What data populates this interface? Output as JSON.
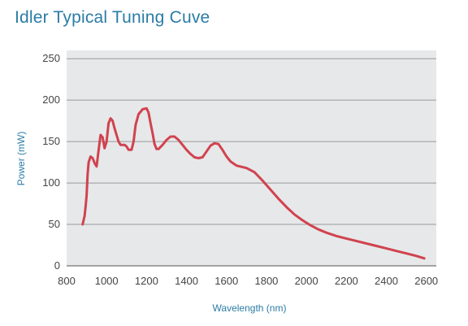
{
  "chart_data": {
    "type": "line",
    "title": "Idler Typical Tuning Cuve",
    "xlabel": "Wavelength (nm)",
    "ylabel": "Power (mW)",
    "xlim": [
      800,
      2650
    ],
    "ylim": [
      0,
      260
    ],
    "xticks": [
      800,
      1000,
      1200,
      1400,
      1600,
      1800,
      2000,
      2200,
      2400,
      2600
    ],
    "yticks": [
      0,
      50,
      100,
      150,
      200,
      250
    ],
    "grid": "horizontal",
    "series": [
      {
        "color": "#d0434f",
        "points": [
          [
            880,
            50
          ],
          [
            890,
            60
          ],
          [
            895,
            72
          ],
          [
            900,
            85
          ],
          [
            905,
            110
          ],
          [
            910,
            125
          ],
          [
            920,
            132
          ],
          [
            930,
            130
          ],
          [
            940,
            124
          ],
          [
            950,
            120
          ],
          [
            960,
            140
          ],
          [
            970,
            158
          ],
          [
            980,
            155
          ],
          [
            990,
            142
          ],
          [
            1000,
            150
          ],
          [
            1010,
            172
          ],
          [
            1020,
            178
          ],
          [
            1030,
            175
          ],
          [
            1040,
            166
          ],
          [
            1060,
            150
          ],
          [
            1070,
            146
          ],
          [
            1090,
            146
          ],
          [
            1100,
            144
          ],
          [
            1110,
            140
          ],
          [
            1125,
            140
          ],
          [
            1135,
            150
          ],
          [
            1145,
            170
          ],
          [
            1160,
            183
          ],
          [
            1180,
            189
          ],
          [
            1200,
            190
          ],
          [
            1210,
            185
          ],
          [
            1220,
            172
          ],
          [
            1230,
            160
          ],
          [
            1240,
            147
          ],
          [
            1250,
            141
          ],
          [
            1260,
            141
          ],
          [
            1280,
            146
          ],
          [
            1300,
            152
          ],
          [
            1320,
            156
          ],
          [
            1340,
            156
          ],
          [
            1360,
            152
          ],
          [
            1380,
            146
          ],
          [
            1400,
            140
          ],
          [
            1420,
            135
          ],
          [
            1440,
            131
          ],
          [
            1460,
            130
          ],
          [
            1480,
            131
          ],
          [
            1500,
            138
          ],
          [
            1520,
            145
          ],
          [
            1540,
            148
          ],
          [
            1560,
            147
          ],
          [
            1580,
            140
          ],
          [
            1600,
            132
          ],
          [
            1620,
            126
          ],
          [
            1650,
            121
          ],
          [
            1700,
            118
          ],
          [
            1740,
            113
          ],
          [
            1780,
            103
          ],
          [
            1820,
            92
          ],
          [
            1860,
            81
          ],
          [
            1900,
            71
          ],
          [
            1940,
            62
          ],
          [
            1980,
            55
          ],
          [
            2020,
            49
          ],
          [
            2060,
            44
          ],
          [
            2100,
            40
          ],
          [
            2150,
            36
          ],
          [
            2200,
            33
          ],
          [
            2250,
            30
          ],
          [
            2300,
            27
          ],
          [
            2350,
            24
          ],
          [
            2400,
            21
          ],
          [
            2450,
            18
          ],
          [
            2500,
            15
          ],
          [
            2550,
            12
          ],
          [
            2590,
            9
          ]
        ]
      }
    ]
  }
}
